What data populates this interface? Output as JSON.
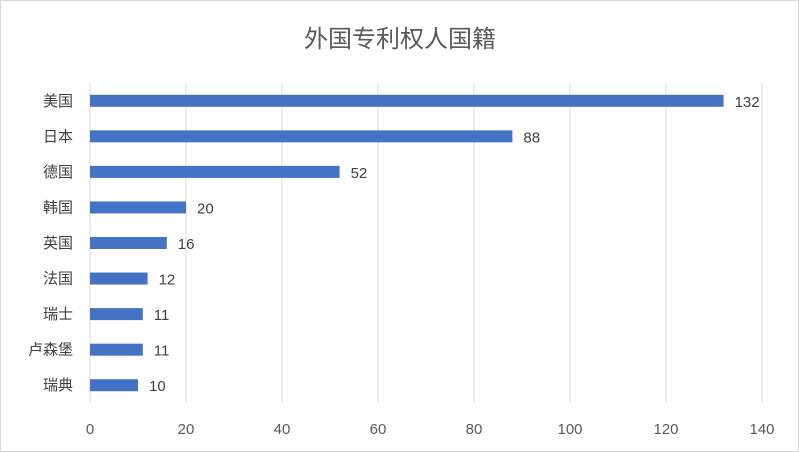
{
  "chart_data": {
    "type": "bar",
    "orientation": "horizontal",
    "title": "外国专利权人国籍",
    "categories": [
      "美国",
      "日本",
      "德国",
      "韩国",
      "英国",
      "法国",
      "瑞士",
      "卢森堡",
      "瑞典"
    ],
    "values": [
      132,
      88,
      52,
      20,
      16,
      12,
      11,
      11,
      10
    ],
    "xlim": [
      0,
      140
    ],
    "x_ticks": [
      0,
      20,
      40,
      60,
      80,
      100,
      120,
      140
    ],
    "grid": true,
    "data_labels": true,
    "legend": "none",
    "bar_color": "#4472c4",
    "grid_color": "#d9d9d9"
  }
}
